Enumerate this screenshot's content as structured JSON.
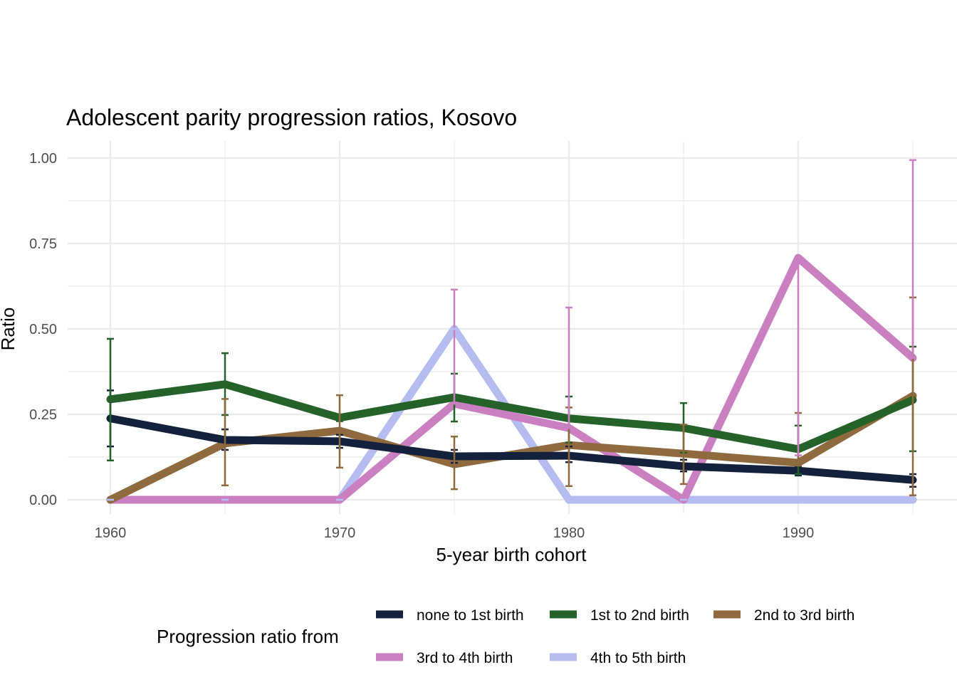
{
  "chart_data": {
    "type": "line",
    "title": "Adolescent parity progression ratios,  Kosovo",
    "xlabel": "5-year birth cohort",
    "ylabel": "Ratio",
    "xlim": [
      1958,
      1999
    ],
    "ylim": [
      0,
      1
    ],
    "x_ticks": [
      1960,
      1970,
      1980,
      1990
    ],
    "y_ticks": [
      0,
      0.25,
      0.5,
      0.75,
      1.0
    ],
    "y_tick_labels": [
      "0.00",
      "0.25",
      "0.50",
      "0.75",
      "1.00"
    ],
    "grid": true,
    "legend_title": "Progression ratio from",
    "legend_position": "bottom",
    "x": [
      1960,
      1965,
      1970,
      1975,
      1980,
      1985,
      1990,
      1995
    ],
    "series": [
      {
        "name": "none to 1st birth",
        "color": "#14213d",
        "values": [
          0.238,
          0.175,
          0.171,
          0.127,
          0.129,
          0.098,
          0.085,
          0.058
        ],
        "lower": [
          0.156,
          0.146,
          0.152,
          0.108,
          0.11,
          0.083,
          0.071,
          0.038
        ],
        "upper": [
          0.32,
          0.206,
          0.19,
          0.146,
          0.156,
          0.117,
          0.098,
          0.075
        ]
      },
      {
        "name": "1st to 2nd birth",
        "color": "#24622a",
        "values": [
          0.294,
          0.338,
          0.24,
          0.3,
          0.238,
          0.21,
          0.148,
          0.292
        ],
        "lower": [
          0.115,
          0.248,
          0.23,
          0.229,
          0.167,
          0.138,
          0.075,
          0.142
        ],
        "upper": [
          0.471,
          0.429,
          0.25,
          0.369,
          0.302,
          0.283,
          0.217,
          0.448
        ]
      },
      {
        "name": "2nd to 3rd birth",
        "color": "#8e6a3e",
        "values": [
          0.0,
          0.165,
          0.202,
          0.104,
          0.16,
          0.135,
          0.108,
          0.304
        ],
        "lower": [
          0.0,
          0.042,
          0.094,
          0.031,
          0.04,
          0.046,
          0.1,
          0.013
        ],
        "upper": [
          0.0,
          0.295,
          0.306,
          0.185,
          0.27,
          0.22,
          0.254,
          0.592
        ]
      },
      {
        "name": "3rd to 4th birth",
        "color": "#c97fc0",
        "values": [
          0,
          0,
          0,
          0.281,
          0.21,
          0,
          0.708,
          0.415
        ],
        "lower": [
          0,
          0,
          0,
          0.281,
          0.21,
          0,
          0.13,
          0.415
        ],
        "upper": [
          0,
          0,
          0,
          0.615,
          0.5625,
          0,
          0.708,
          0.994
        ]
      },
      {
        "name": "4th to 5th birth",
        "color": "#b5bdf0",
        "values": [
          0,
          0,
          0,
          0.5,
          0,
          0,
          0,
          0
        ],
        "lower": [
          0,
          0,
          0,
          0.5,
          0,
          0,
          0,
          0
        ],
        "upper": [
          0,
          0,
          0,
          0.5,
          0,
          0,
          0,
          0
        ]
      }
    ]
  }
}
